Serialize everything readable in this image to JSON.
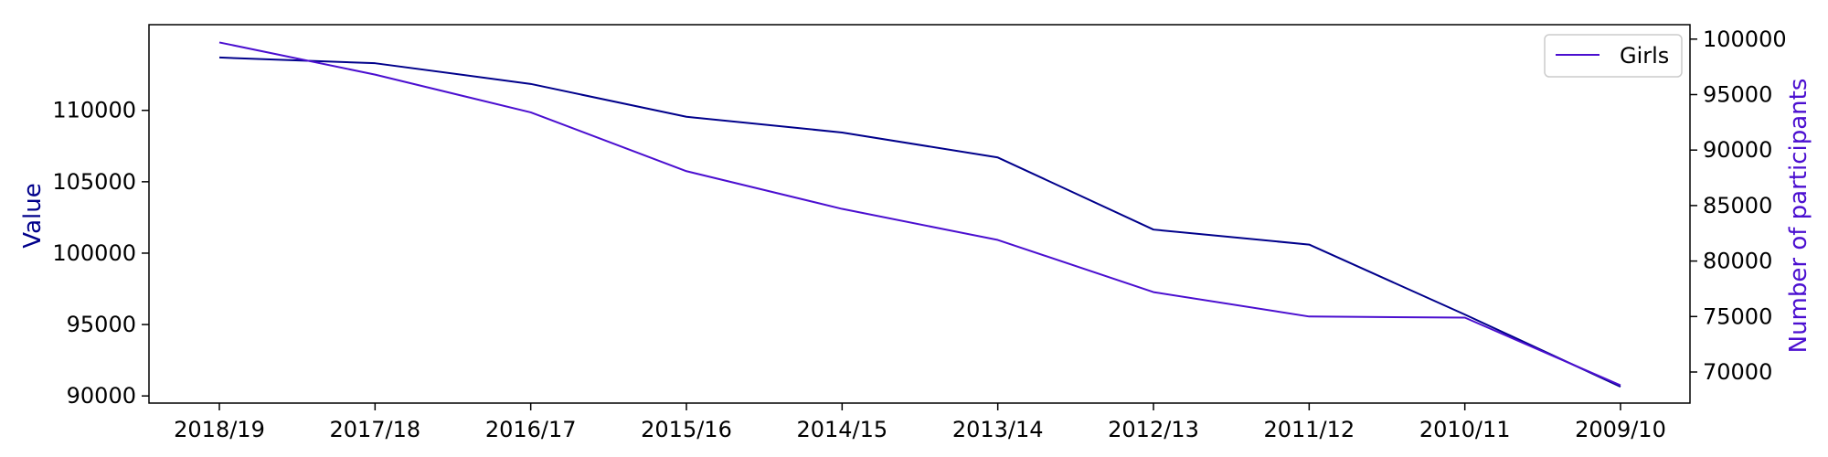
{
  "chart_data": {
    "type": "line",
    "categories": [
      "2018/19",
      "2017/18",
      "2016/17",
      "2015/16",
      "2014/15",
      "2013/14",
      "2012/13",
      "2011/12",
      "2010/11",
      "2009/10"
    ],
    "series": [
      {
        "name": "",
        "axis": "left",
        "color": "#00008b",
        "values": [
          113700,
          113300,
          111850,
          109550,
          108450,
          106700,
          101650,
          100600,
          95700,
          90650
        ]
      },
      {
        "name": "Girls",
        "axis": "right",
        "color": "#4b0fd0",
        "values": [
          99700,
          96800,
          93400,
          88100,
          84700,
          81900,
          77200,
          75000,
          74900,
          68800
        ]
      }
    ],
    "ylabel": "Value",
    "ylabel_right": "Number of participants",
    "ylim": [
      89500,
      116000
    ],
    "ylim_right": [
      67200,
      101300
    ],
    "yticks": [
      90000,
      95000,
      100000,
      105000,
      110000
    ],
    "yticks_right": [
      70000,
      75000,
      80000,
      85000,
      90000,
      95000,
      100000
    ],
    "legend": [
      "Girls"
    ],
    "legend_position": "top-right",
    "grid": false
  }
}
